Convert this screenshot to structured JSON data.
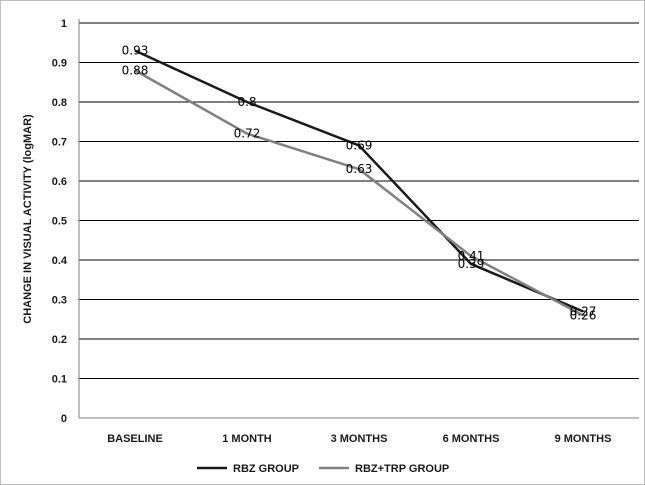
{
  "chart_data": {
    "type": "line",
    "categories": [
      "BASELINE",
      "1 MONTH",
      "3 MONTHS",
      "6 MONTHS",
      "9 MONTHS"
    ],
    "series": [
      {
        "name": "RBZ GROUP",
        "values": [
          0.93,
          0.8,
          0.69,
          0.39,
          0.27
        ],
        "labels": [
          "0.93",
          "0.8",
          "0.69",
          "0.39",
          "0.27"
        ],
        "color": "#1a1a1a"
      },
      {
        "name": "RBZ+TRP GROUP",
        "values": [
          0.88,
          0.72,
          0.63,
          0.41,
          0.26
        ],
        "labels": [
          "0.88",
          "0.72",
          "0.63",
          "0.41",
          "0.26"
        ],
        "color": "#808080"
      }
    ],
    "ylabel": "CHANGE IN VISUAL ACTIVITY (logMAR)",
    "xlabel": "",
    "ylim": [
      0,
      1
    ],
    "yticks": [
      "0",
      "0.1",
      "0.2",
      "0.3",
      "0.4",
      "0.5",
      "0.6",
      "0.7",
      "0.8",
      "0.9",
      "1"
    ],
    "grid": true,
    "legend_position": "bottom"
  }
}
